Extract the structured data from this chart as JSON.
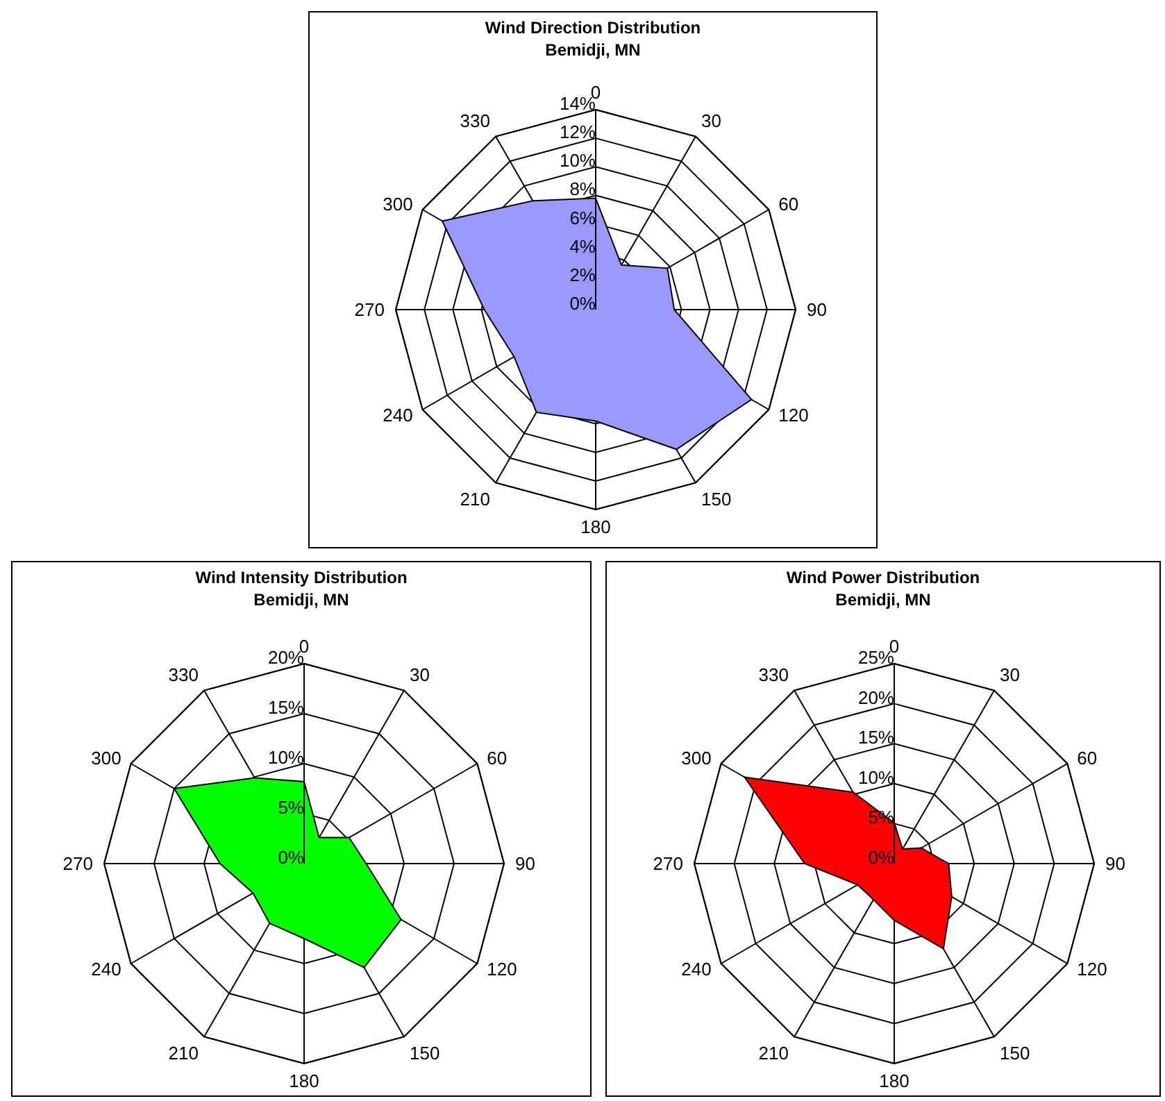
{
  "chart_data": [
    {
      "type": "radar",
      "title": "Wind Direction Distribution",
      "subtitle": "Bemidji, MN",
      "categories": [
        "0",
        "30",
        "60",
        "90",
        "120",
        "150",
        "180",
        "210",
        "240",
        "270",
        "300",
        "330"
      ],
      "series": [
        {
          "color": "#9999ff",
          "values": [
            7.8,
            3.6,
            5.8,
            5.5,
            12.6,
            11.3,
            7.8,
            8.3,
            6.6,
            7.8,
            12.4,
            8.8
          ]
        }
      ],
      "ylim": [
        0,
        14
      ],
      "yticks": [
        {
          "value": 0,
          "label": "0%"
        },
        {
          "value": 2,
          "label": "2%"
        },
        {
          "value": 4,
          "label": "4%"
        },
        {
          "value": 6,
          "label": "6%"
        },
        {
          "value": 8,
          "label": "8%"
        },
        {
          "value": 10,
          "label": "10%"
        },
        {
          "value": 12,
          "label": "12%"
        },
        {
          "value": 14,
          "label": "14%"
        }
      ],
      "grid": true
    },
    {
      "type": "radar",
      "title": "Wind Intensity Distribution",
      "subtitle": "Bemidji, MN",
      "categories": [
        "0",
        "30",
        "60",
        "90",
        "120",
        "150",
        "180",
        "210",
        "240",
        "270",
        "300",
        "330"
      ],
      "series": [
        {
          "color": "#00ff00",
          "values": [
            8.2,
            3.0,
            5.2,
            6.2,
            11.2,
            12.0,
            7.5,
            6.9,
            5.9,
            8.4,
            15.0,
            9.9
          ]
        }
      ],
      "ylim": [
        0,
        20
      ],
      "yticks": [
        {
          "value": 0,
          "label": "0%"
        },
        {
          "value": 5,
          "label": "5%"
        },
        {
          "value": 10,
          "label": "10%"
        },
        {
          "value": 15,
          "label": "15%"
        },
        {
          "value": 20,
          "label": "20%"
        }
      ],
      "grid": true
    },
    {
      "type": "radar",
      "title": "Wind Power Distribution",
      "subtitle": "Bemidji, MN",
      "categories": [
        "0",
        "30",
        "60",
        "90",
        "120",
        "150",
        "180",
        "210",
        "240",
        "270",
        "300",
        "330"
      ],
      "series": [
        {
          "color": "#ff0000",
          "values": [
            5.1,
            2.1,
            3.9,
            6.8,
            8.3,
            12.3,
            7.1,
            5.2,
            5.3,
            11.2,
            21.6,
            10.3
          ]
        }
      ],
      "ylim": [
        0,
        25
      ],
      "yticks": [
        {
          "value": 0,
          "label": "0%"
        },
        {
          "value": 5,
          "label": "5%"
        },
        {
          "value": 10,
          "label": "10%"
        },
        {
          "value": 15,
          "label": "15%"
        },
        {
          "value": 20,
          "label": "20%"
        },
        {
          "value": 25,
          "label": "25%"
        }
      ],
      "grid": true
    }
  ]
}
